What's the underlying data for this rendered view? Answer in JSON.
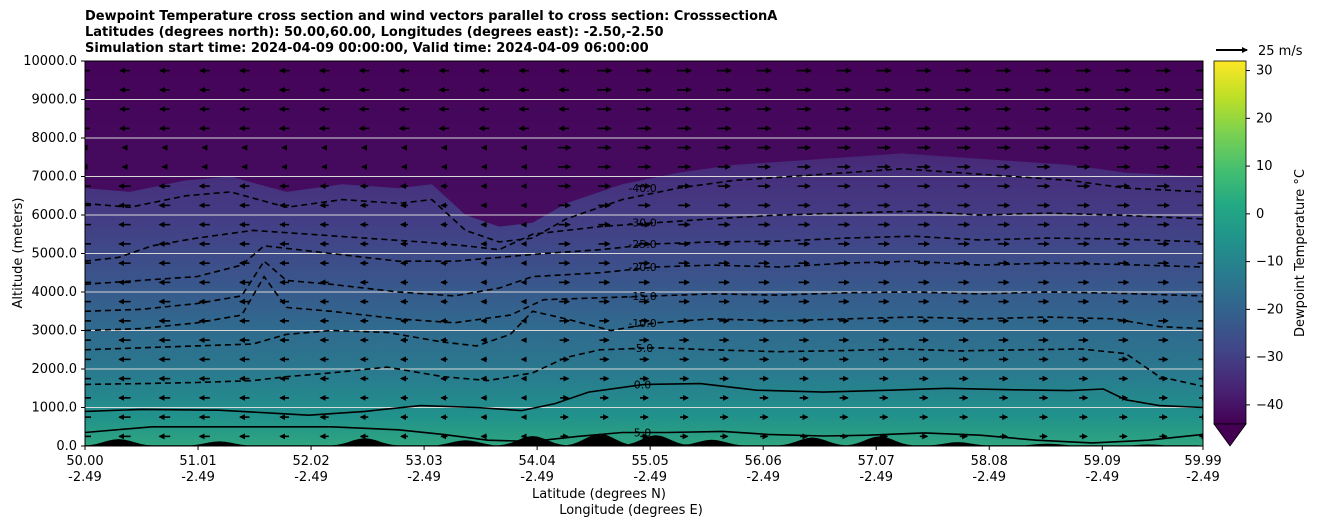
{
  "chart_data": {
    "type": "heatmap",
    "title_lines": [
      "Dewpoint Temperature cross section and wind vectors parallel to cross section: CrosssectionA",
      "Latitudes (degrees north): 50.00,60.00, Longitudes (degrees east): -2.50,-2.50",
      "Simulation start time: 2024-04-09 00:00:00, Valid time: 2024-04-09 06:00:00"
    ],
    "xlabel": "Latitude (degrees N)",
    "xlabel2": "Longitude (degrees E)",
    "ylabel": "Altitude (meters)",
    "xlim": [
      50.0,
      59.99
    ],
    "ylim": [
      0,
      10000
    ],
    "x_ticks": [
      {
        "lat": "50.00",
        "lon": "-2.49",
        "value": 50.0
      },
      {
        "lat": "51.01",
        "lon": "-2.49",
        "value": 51.01
      },
      {
        "lat": "52.02",
        "lon": "-2.49",
        "value": 52.02
      },
      {
        "lat": "53.03",
        "lon": "-2.49",
        "value": 53.03
      },
      {
        "lat": "54.04",
        "lon": "-2.49",
        "value": 54.04
      },
      {
        "lat": "55.05",
        "lon": "-2.49",
        "value": 55.05
      },
      {
        "lat": "56.06",
        "lon": "-2.49",
        "value": 56.06
      },
      {
        "lat": "57.07",
        "lon": "-2.49",
        "value": 57.07
      },
      {
        "lat": "58.08",
        "lon": "-2.49",
        "value": 58.08
      },
      {
        "lat": "59.09",
        "lon": "-2.49",
        "value": 59.09
      },
      {
        "lat": "59.99",
        "lon": "-2.49",
        "value": 59.99
      }
    ],
    "y_ticks": [
      {
        "label": "0.0",
        "value": 0
      },
      {
        "label": "1000.0",
        "value": 1000
      },
      {
        "label": "2000.0",
        "value": 2000
      },
      {
        "label": "3000.0",
        "value": 3000
      },
      {
        "label": "4000.0",
        "value": 4000
      },
      {
        "label": "5000.0",
        "value": 5000
      },
      {
        "label": "6000.0",
        "value": 6000
      },
      {
        "label": "7000.0",
        "value": 7000
      },
      {
        "label": "8000.0",
        "value": 8000
      },
      {
        "label": "9000.0",
        "value": 9000
      },
      {
        "label": "10000.0",
        "value": 10000
      }
    ],
    "grid": "horizontal",
    "colorbar": {
      "label": "Dewpoint Temperature $^\\circ$C",
      "label_display": "Dewpoint Temperature °C",
      "range": [
        -44,
        32
      ],
      "extend": "min",
      "ticks": [
        {
          "label": "30",
          "value": 30
        },
        {
          "label": "20",
          "value": 20
        },
        {
          "label": "10",
          "value": 10
        },
        {
          "label": "0",
          "value": 0
        },
        {
          "label": "−10",
          "value": -10
        },
        {
          "label": "−20",
          "value": -20
        },
        {
          "label": "−30",
          "value": -30
        },
        {
          "label": "−40",
          "value": -40
        }
      ],
      "colormap": [
        "#440154",
        "#482475",
        "#414487",
        "#355f8d",
        "#2a788e",
        "#21918c",
        "#22a884",
        "#44bf70",
        "#7ad151",
        "#bddf26",
        "#fde725"
      ]
    },
    "quiver_key": {
      "label": "25 m/s",
      "speed": 25
    },
    "contours": [
      {
        "level": 5.0,
        "label": "5.0",
        "style": "solid",
        "points": [
          [
            50.0,
            350
          ],
          [
            50.6,
            500
          ],
          [
            51.0,
            500
          ],
          [
            51.8,
            500
          ],
          [
            52.2,
            500
          ],
          [
            52.8,
            420
          ],
          [
            53.2,
            300
          ],
          [
            53.6,
            150
          ],
          [
            54.0,
            120
          ],
          [
            54.4,
            250
          ],
          [
            54.8,
            350
          ],
          [
            55.2,
            350
          ],
          [
            55.7,
            380
          ],
          [
            56.1,
            300
          ],
          [
            56.6,
            260
          ],
          [
            57.0,
            280
          ],
          [
            57.5,
            340
          ],
          [
            58.0,
            280
          ],
          [
            58.5,
            150
          ],
          [
            59.0,
            80
          ],
          [
            59.5,
            150
          ],
          [
            59.99,
            300
          ]
        ]
      },
      {
        "level": 0.0,
        "label": "0.0",
        "style": "solid",
        "points": [
          [
            50.0,
            900
          ],
          [
            50.5,
            950
          ],
          [
            51.2,
            930
          ],
          [
            51.7,
            850
          ],
          [
            52.0,
            800
          ],
          [
            52.5,
            900
          ],
          [
            53.0,
            1050
          ],
          [
            53.5,
            1000
          ],
          [
            53.9,
            920
          ],
          [
            54.2,
            1100
          ],
          [
            54.5,
            1400
          ],
          [
            55.0,
            1600
          ],
          [
            55.5,
            1620
          ],
          [
            56.0,
            1450
          ],
          [
            56.6,
            1400
          ],
          [
            57.2,
            1450
          ],
          [
            57.7,
            1500
          ],
          [
            58.3,
            1460
          ],
          [
            58.8,
            1440
          ],
          [
            59.1,
            1480
          ],
          [
            59.3,
            1200
          ],
          [
            59.6,
            1050
          ],
          [
            59.99,
            1000
          ]
        ]
      },
      {
        "level": -5.0,
        "label": "-5.0",
        "style": "dashed",
        "points": [
          [
            50.0,
            1600
          ],
          [
            50.5,
            1620
          ],
          [
            51.0,
            1650
          ],
          [
            51.5,
            1700
          ],
          [
            51.8,
            1800
          ],
          [
            52.2,
            1900
          ],
          [
            52.7,
            2050
          ],
          [
            53.2,
            1800
          ],
          [
            53.6,
            1700
          ],
          [
            54.0,
            1900
          ],
          [
            54.3,
            2300
          ],
          [
            54.6,
            2500
          ],
          [
            55.1,
            2550
          ],
          [
            55.6,
            2500
          ],
          [
            56.2,
            2450
          ],
          [
            56.8,
            2480
          ],
          [
            57.3,
            2520
          ],
          [
            57.8,
            2470
          ],
          [
            58.4,
            2500
          ],
          [
            58.9,
            2520
          ],
          [
            59.3,
            2400
          ],
          [
            59.6,
            1800
          ],
          [
            59.99,
            1550
          ]
        ]
      },
      {
        "level": -10.0,
        "label": "-10.0",
        "style": "dashed",
        "points": [
          [
            50.0,
            2500
          ],
          [
            50.5,
            2550
          ],
          [
            51.0,
            2600
          ],
          [
            51.5,
            2650
          ],
          [
            51.8,
            2900
          ],
          [
            52.2,
            3000
          ],
          [
            52.7,
            2950
          ],
          [
            53.2,
            2700
          ],
          [
            53.5,
            2600
          ],
          [
            53.8,
            2900
          ],
          [
            54.0,
            3500
          ],
          [
            54.3,
            3300
          ],
          [
            54.7,
            3000
          ],
          [
            55.1,
            3200
          ],
          [
            55.6,
            3300
          ],
          [
            56.2,
            3250
          ],
          [
            56.8,
            3300
          ],
          [
            57.4,
            3350
          ],
          [
            58.0,
            3300
          ],
          [
            58.6,
            3350
          ],
          [
            59.2,
            3300
          ],
          [
            59.6,
            3100
          ],
          [
            59.99,
            3050
          ]
        ]
      },
      {
        "level": -15.0,
        "label": "-15.0",
        "style": "dashed",
        "points": [
          [
            50.0,
            3000
          ],
          [
            50.5,
            3050
          ],
          [
            51.0,
            3200
          ],
          [
            51.4,
            3400
          ],
          [
            51.6,
            4400
          ],
          [
            51.8,
            3600
          ],
          [
            52.2,
            3500
          ],
          [
            52.8,
            3300
          ],
          [
            53.3,
            3200
          ],
          [
            53.8,
            3400
          ],
          [
            54.1,
            3800
          ],
          [
            54.6,
            3850
          ],
          [
            55.1,
            3900
          ],
          [
            55.6,
            3950
          ],
          [
            56.2,
            3920
          ],
          [
            56.8,
            3980
          ],
          [
            57.4,
            4000
          ],
          [
            58.0,
            3950
          ],
          [
            58.6,
            4000
          ],
          [
            59.2,
            3970
          ],
          [
            59.99,
            3900
          ]
        ]
      },
      {
        "level": -20.0,
        "label": "-20.0",
        "style": "dashed",
        "points": [
          [
            50.0,
            3500
          ],
          [
            50.5,
            3550
          ],
          [
            51.0,
            3700
          ],
          [
            51.4,
            3900
          ],
          [
            51.6,
            4800
          ],
          [
            51.8,
            4300
          ],
          [
            52.2,
            4200
          ],
          [
            52.8,
            4000
          ],
          [
            53.3,
            3900
          ],
          [
            53.7,
            4100
          ],
          [
            54.0,
            4400
          ],
          [
            54.6,
            4500
          ],
          [
            55.1,
            4650
          ],
          [
            55.6,
            4700
          ],
          [
            56.2,
            4650
          ],
          [
            56.8,
            4750
          ],
          [
            57.4,
            4800
          ],
          [
            58.0,
            4700
          ],
          [
            58.6,
            4750
          ],
          [
            59.2,
            4720
          ],
          [
            59.99,
            4650
          ]
        ]
      },
      {
        "level": -25.0,
        "label": "-25.0",
        "style": "dashed",
        "points": [
          [
            50.0,
            4200
          ],
          [
            50.5,
            4300
          ],
          [
            51.0,
            4400
          ],
          [
            51.4,
            4700
          ],
          [
            51.6,
            5200
          ],
          [
            52.2,
            5000
          ],
          [
            52.8,
            4800
          ],
          [
            53.3,
            4800
          ],
          [
            53.7,
            4900
          ],
          [
            54.1,
            5000
          ],
          [
            54.6,
            5100
          ],
          [
            55.1,
            5250
          ],
          [
            55.6,
            5300
          ],
          [
            56.2,
            5320
          ],
          [
            56.8,
            5400
          ],
          [
            57.4,
            5450
          ],
          [
            58.0,
            5350
          ],
          [
            58.6,
            5400
          ],
          [
            59.2,
            5380
          ],
          [
            59.99,
            5300
          ]
        ]
      },
      {
        "level": -30.0,
        "label": "-30.0",
        "style": "dashed",
        "points": [
          [
            50.0,
            4800
          ],
          [
            50.3,
            4900
          ],
          [
            50.6,
            5200
          ],
          [
            51.0,
            5400
          ],
          [
            51.5,
            5600
          ],
          [
            52.0,
            5500
          ],
          [
            52.5,
            5400
          ],
          [
            53.0,
            5300
          ],
          [
            53.4,
            5200
          ],
          [
            53.7,
            5100
          ],
          [
            54.0,
            5500
          ],
          [
            54.6,
            5700
          ],
          [
            55.1,
            5800
          ],
          [
            55.6,
            5900
          ],
          [
            56.2,
            6000
          ],
          [
            56.8,
            6050
          ],
          [
            57.4,
            6100
          ],
          [
            58.0,
            6000
          ],
          [
            58.6,
            6050
          ],
          [
            59.2,
            6000
          ],
          [
            59.99,
            5900
          ]
        ]
      },
      {
        "level": -40.0,
        "label": "-40.0",
        "style": "dashed",
        "points": [
          [
            50.0,
            6300
          ],
          [
            50.4,
            6200
          ],
          [
            50.9,
            6500
          ],
          [
            51.3,
            6600
          ],
          [
            51.8,
            6200
          ],
          [
            52.3,
            6400
          ],
          [
            52.8,
            6300
          ],
          [
            53.1,
            6400
          ],
          [
            53.4,
            5600
          ],
          [
            53.7,
            5300
          ],
          [
            54.0,
            5400
          ],
          [
            54.3,
            5900
          ],
          [
            54.8,
            6400
          ],
          [
            55.3,
            6700
          ],
          [
            55.8,
            6900
          ],
          [
            56.3,
            7000
          ],
          [
            56.8,
            7100
          ],
          [
            57.3,
            7200
          ],
          [
            57.8,
            7100
          ],
          [
            58.3,
            7000
          ],
          [
            58.8,
            6900
          ],
          [
            59.3,
            6700
          ],
          [
            59.99,
            6600
          ]
        ]
      }
    ],
    "wind_field": "u component along section: westward (negative) near 50.0-54.0 N at low and mid levels and above 8000 m in the south, eastward (positive) elsewhere; magnitude up to about 15 m/s",
    "terrain": "black filled orography near surface with peaks near 50.3, 52.5, 54.0, 55.1, 56.5 and 57.1 N"
  }
}
